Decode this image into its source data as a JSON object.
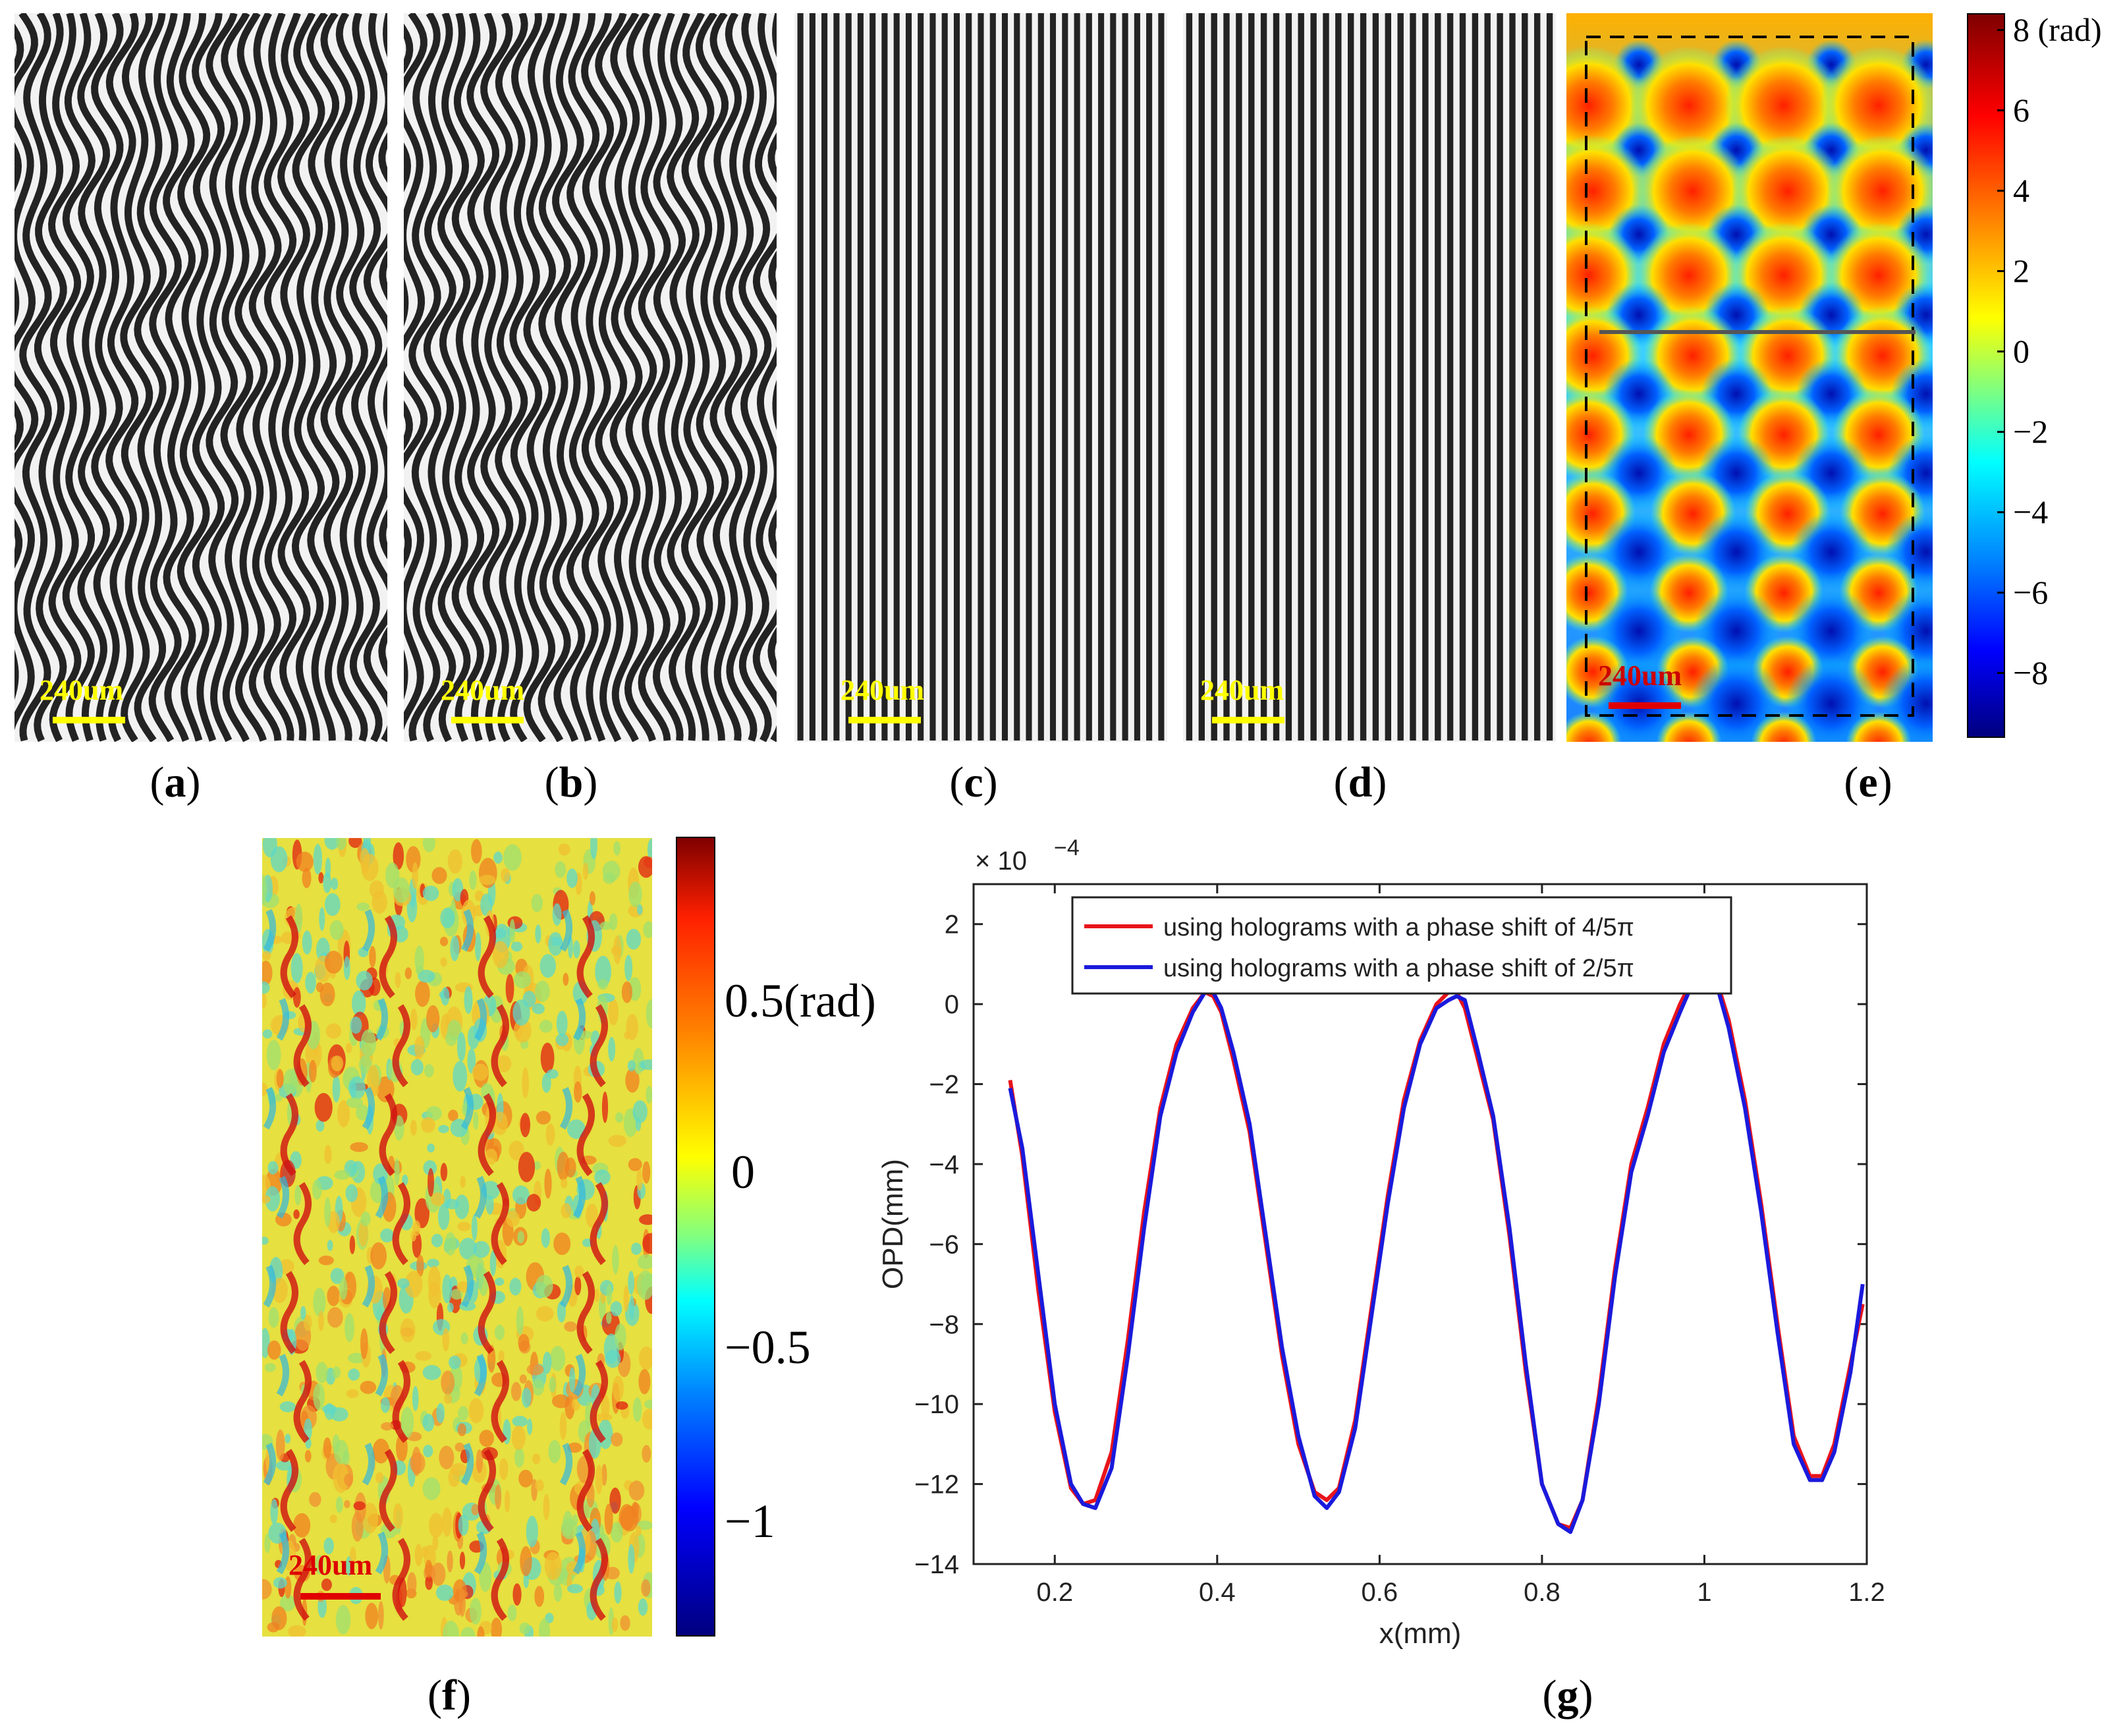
{
  "panels": [
    {
      "label": "a",
      "scalebar": "240um"
    },
    {
      "label": "b",
      "scalebar": "240um"
    },
    {
      "label": "c",
      "scalebar": "240um"
    },
    {
      "label": "d",
      "scalebar": "240um"
    },
    {
      "label": "e",
      "scalebar": "240um"
    },
    {
      "label": "f",
      "scalebar": "240um"
    },
    {
      "label": "g"
    }
  ],
  "colors": {
    "yellow_scale": "#ffff00",
    "red_scale": "#e00000",
    "series_red": "#e8141b",
    "series_blue": "#1a1adc"
  },
  "colorbar_e": {
    "ticks": [
      "8 (rad)",
      "6",
      "4",
      "2",
      "0",
      "−2",
      "−4",
      "−6",
      "−8"
    ]
  },
  "colorbar_f": {
    "ticks": [
      "0.5(rad)",
      "0",
      "−0.5",
      "−1"
    ]
  },
  "chart_data": {
    "type": "line",
    "title": "",
    "xlabel": "x(mm)",
    "ylabel": "OPD(mm)",
    "exponent_label": "× 10",
    "exponent_power": "−4",
    "xlim": [
      0.1,
      1.2
    ],
    "ylim": [
      -14,
      3
    ],
    "xticks": [
      0.2,
      0.4,
      0.6,
      0.8,
      1.0,
      1.2
    ],
    "xtick_labels": [
      "0.2",
      "0.4",
      "0.6",
      "0.8",
      "1",
      "1.2"
    ],
    "yticks": [
      2,
      0,
      -2,
      -4,
      -6,
      -8,
      -10,
      -12,
      -14
    ],
    "ytick_labels": [
      "2",
      "0",
      "−2",
      "−4",
      "−6",
      "−8",
      "−10",
      "−12",
      "−14"
    ],
    "legend_position": "top",
    "series": [
      {
        "name": "using holograms with a phase shift of 4/5π",
        "color": "#e8141b",
        "x": [
          0.145,
          0.16,
          0.18,
          0.2,
          0.22,
          0.235,
          0.25,
          0.27,
          0.29,
          0.31,
          0.33,
          0.35,
          0.37,
          0.385,
          0.395,
          0.405,
          0.42,
          0.44,
          0.46,
          0.48,
          0.5,
          0.52,
          0.535,
          0.55,
          0.57,
          0.59,
          0.61,
          0.63,
          0.65,
          0.67,
          0.685,
          0.695,
          0.705,
          0.72,
          0.74,
          0.76,
          0.78,
          0.8,
          0.82,
          0.835,
          0.85,
          0.87,
          0.89,
          0.91,
          0.93,
          0.95,
          0.97,
          0.985,
          1.0,
          1.015,
          1.03,
          1.05,
          1.07,
          1.09,
          1.11,
          1.13,
          1.145,
          1.16,
          1.18,
          1.195
        ],
        "y": [
          -1.9,
          -3.8,
          -7.2,
          -10.2,
          -12.1,
          -12.5,
          -12.4,
          -11.2,
          -8.4,
          -5.2,
          -2.6,
          -1.0,
          -0.1,
          0.3,
          0.2,
          -0.2,
          -1.4,
          -3.2,
          -6.0,
          -8.8,
          -11.0,
          -12.2,
          -12.4,
          -12.1,
          -10.4,
          -7.6,
          -4.8,
          -2.4,
          -0.9,
          0.0,
          0.3,
          0.3,
          -0.1,
          -1.3,
          -2.9,
          -5.8,
          -9.2,
          -12.0,
          -13.0,
          -13.1,
          -12.4,
          -9.8,
          -6.6,
          -4.0,
          -2.6,
          -1.0,
          0.0,
          0.6,
          0.8,
          0.6,
          -0.4,
          -2.4,
          -5.0,
          -8.0,
          -10.8,
          -11.8,
          -11.8,
          -11.0,
          -9.0,
          -7.5
        ]
      },
      {
        "name": "using holograms with a phase shift of 2/5π",
        "color": "#1a1adc",
        "x": [
          0.145,
          0.16,
          0.18,
          0.2,
          0.22,
          0.235,
          0.25,
          0.27,
          0.29,
          0.31,
          0.33,
          0.35,
          0.37,
          0.385,
          0.395,
          0.405,
          0.42,
          0.44,
          0.46,
          0.48,
          0.5,
          0.52,
          0.535,
          0.55,
          0.57,
          0.59,
          0.61,
          0.63,
          0.65,
          0.67,
          0.685,
          0.695,
          0.705,
          0.72,
          0.74,
          0.76,
          0.78,
          0.8,
          0.82,
          0.835,
          0.85,
          0.87,
          0.89,
          0.91,
          0.93,
          0.95,
          0.97,
          0.985,
          1.0,
          1.015,
          1.03,
          1.05,
          1.07,
          1.09,
          1.11,
          1.13,
          1.145,
          1.16,
          1.18,
          1.195
        ],
        "y": [
          -2.1,
          -3.6,
          -6.8,
          -10.0,
          -12.0,
          -12.5,
          -12.6,
          -11.6,
          -8.8,
          -5.6,
          -2.8,
          -1.2,
          -0.2,
          0.3,
          0.3,
          -0.1,
          -1.2,
          -3.0,
          -5.8,
          -8.6,
          -10.8,
          -12.3,
          -12.6,
          -12.2,
          -10.6,
          -7.8,
          -5.0,
          -2.6,
          -1.0,
          -0.1,
          0.1,
          0.2,
          0.1,
          -1.1,
          -2.8,
          -5.6,
          -9.0,
          -12.0,
          -13.0,
          -13.2,
          -12.4,
          -10.0,
          -6.8,
          -4.2,
          -2.8,
          -1.2,
          -0.2,
          0.5,
          0.7,
          0.5,
          -0.6,
          -2.6,
          -5.2,
          -8.2,
          -11.0,
          -11.9,
          -11.9,
          -11.2,
          -9.2,
          -7.0
        ]
      }
    ]
  }
}
